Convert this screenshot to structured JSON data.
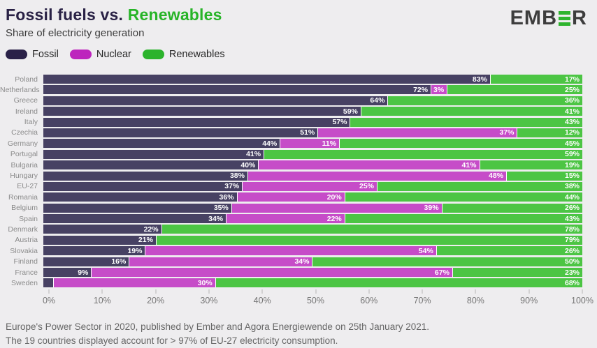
{
  "header": {
    "title_part1": "Fossil fuels vs. ",
    "title_part2": "Renewables",
    "subtitle": "Share of electricity generation",
    "logo": {
      "pre": "EMB",
      "post": "R",
      "bar_color": "#2eb42e"
    }
  },
  "legend": [
    {
      "label": "Fossil",
      "color": "#2a2148"
    },
    {
      "label": "Nuclear",
      "color": "#bd24bd"
    },
    {
      "label": "Renewables",
      "color": "#2cb32c"
    }
  ],
  "colors": {
    "background": "#eeedef",
    "title_navy": "#292145",
    "title_green": "#27b427",
    "fossil_bar": "#474163",
    "nuclear_bar": "#c64cc8",
    "renewables_bar": "#4cc544"
  },
  "chart_data": {
    "type": "bar",
    "stacked": true,
    "orientation": "horizontal",
    "unit": "%",
    "xlim": [
      0,
      100
    ],
    "x_ticks": [
      "0%",
      "10%",
      "20%",
      "30%",
      "40%",
      "50%",
      "60%",
      "70%",
      "80%",
      "90%",
      "100%"
    ],
    "series_names": [
      "Fossil",
      "Nuclear",
      "Renewables"
    ],
    "rows": [
      {
        "country": "Poland",
        "fossil": 83,
        "fossil_label": "83%",
        "nuclear": 0,
        "nuclear_label": "",
        "renewables": 17,
        "renewables_label": "17%"
      },
      {
        "country": "Netherlands",
        "fossil": 72,
        "fossil_label": "72%",
        "nuclear": 3,
        "nuclear_label": "3%",
        "renewables": 25,
        "renewables_label": "25%"
      },
      {
        "country": "Greece",
        "fossil": 64,
        "fossil_label": "64%",
        "nuclear": 0,
        "nuclear_label": "",
        "renewables": 36,
        "renewables_label": "36%"
      },
      {
        "country": "Ireland",
        "fossil": 59,
        "fossil_label": "59%",
        "nuclear": 0,
        "nuclear_label": "",
        "renewables": 41,
        "renewables_label": "41%"
      },
      {
        "country": "Italy",
        "fossil": 57,
        "fossil_label": "57%",
        "nuclear": 0,
        "nuclear_label": "",
        "renewables": 43,
        "renewables_label": "43%"
      },
      {
        "country": "Czechia",
        "fossil": 51,
        "fossil_label": "51%",
        "nuclear": 37,
        "nuclear_label": "37%",
        "renewables": 12,
        "renewables_label": "12%"
      },
      {
        "country": "Germany",
        "fossil": 44,
        "fossil_label": "44%",
        "nuclear": 11,
        "nuclear_label": "11%",
        "renewables": 45,
        "renewables_label": "45%"
      },
      {
        "country": "Portugal",
        "fossil": 41,
        "fossil_label": "41%",
        "nuclear": 0,
        "nuclear_label": "",
        "renewables": 59,
        "renewables_label": "59%"
      },
      {
        "country": "Bulgaria",
        "fossil": 40,
        "fossil_label": "40%",
        "nuclear": 41,
        "nuclear_label": "41%",
        "renewables": 19,
        "renewables_label": "19%"
      },
      {
        "country": "Hungary",
        "fossil": 38,
        "fossil_label": "38%",
        "nuclear": 48,
        "nuclear_label": "48%",
        "renewables": 15,
        "renewables_label": "15%"
      },
      {
        "country": "EU-27",
        "fossil": 37,
        "fossil_label": "37%",
        "nuclear": 25,
        "nuclear_label": "25%",
        "renewables": 38,
        "renewables_label": "38%"
      },
      {
        "country": "Romania",
        "fossil": 36,
        "fossil_label": "36%",
        "nuclear": 20,
        "nuclear_label": "20%",
        "renewables": 44,
        "renewables_label": "44%"
      },
      {
        "country": "Belgium",
        "fossil": 35,
        "fossil_label": "35%",
        "nuclear": 39,
        "nuclear_label": "39%",
        "renewables": 26,
        "renewables_label": "26%"
      },
      {
        "country": "Spain",
        "fossil": 34,
        "fossil_label": "34%",
        "nuclear": 22,
        "nuclear_label": "22%",
        "renewables": 43,
        "renewables_label": "43%"
      },
      {
        "country": "Denmark",
        "fossil": 22,
        "fossil_label": "22%",
        "nuclear": 0,
        "nuclear_label": "",
        "renewables": 78,
        "renewables_label": "78%"
      },
      {
        "country": "Austria",
        "fossil": 21,
        "fossil_label": "21%",
        "nuclear": 0,
        "nuclear_label": "",
        "renewables": 79,
        "renewables_label": "79%"
      },
      {
        "country": "Slovakia",
        "fossil": 19,
        "fossil_label": "19%",
        "nuclear": 54,
        "nuclear_label": "54%",
        "renewables": 26,
        "renewables_label": "26%"
      },
      {
        "country": "Finland",
        "fossil": 16,
        "fossil_label": "16%",
        "nuclear": 34,
        "nuclear_label": "34%",
        "renewables": 50,
        "renewables_label": "50%"
      },
      {
        "country": "France",
        "fossil": 9,
        "fossil_label": "9%",
        "nuclear": 67,
        "nuclear_label": "67%",
        "renewables": 23,
        "renewables_label": "23%"
      },
      {
        "country": "Sweden",
        "fossil": 2,
        "fossil_label": "",
        "nuclear": 30,
        "nuclear_label": "30%",
        "renewables": 68,
        "renewables_label": "68%"
      }
    ]
  },
  "footer": {
    "line1": "Europe's Power Sector in 2020, published by Ember and Agora Energiewende on 25th January 2021.",
    "line2": "The 19 countries displayed account for > 97% of EU-27 electricity consumption."
  }
}
